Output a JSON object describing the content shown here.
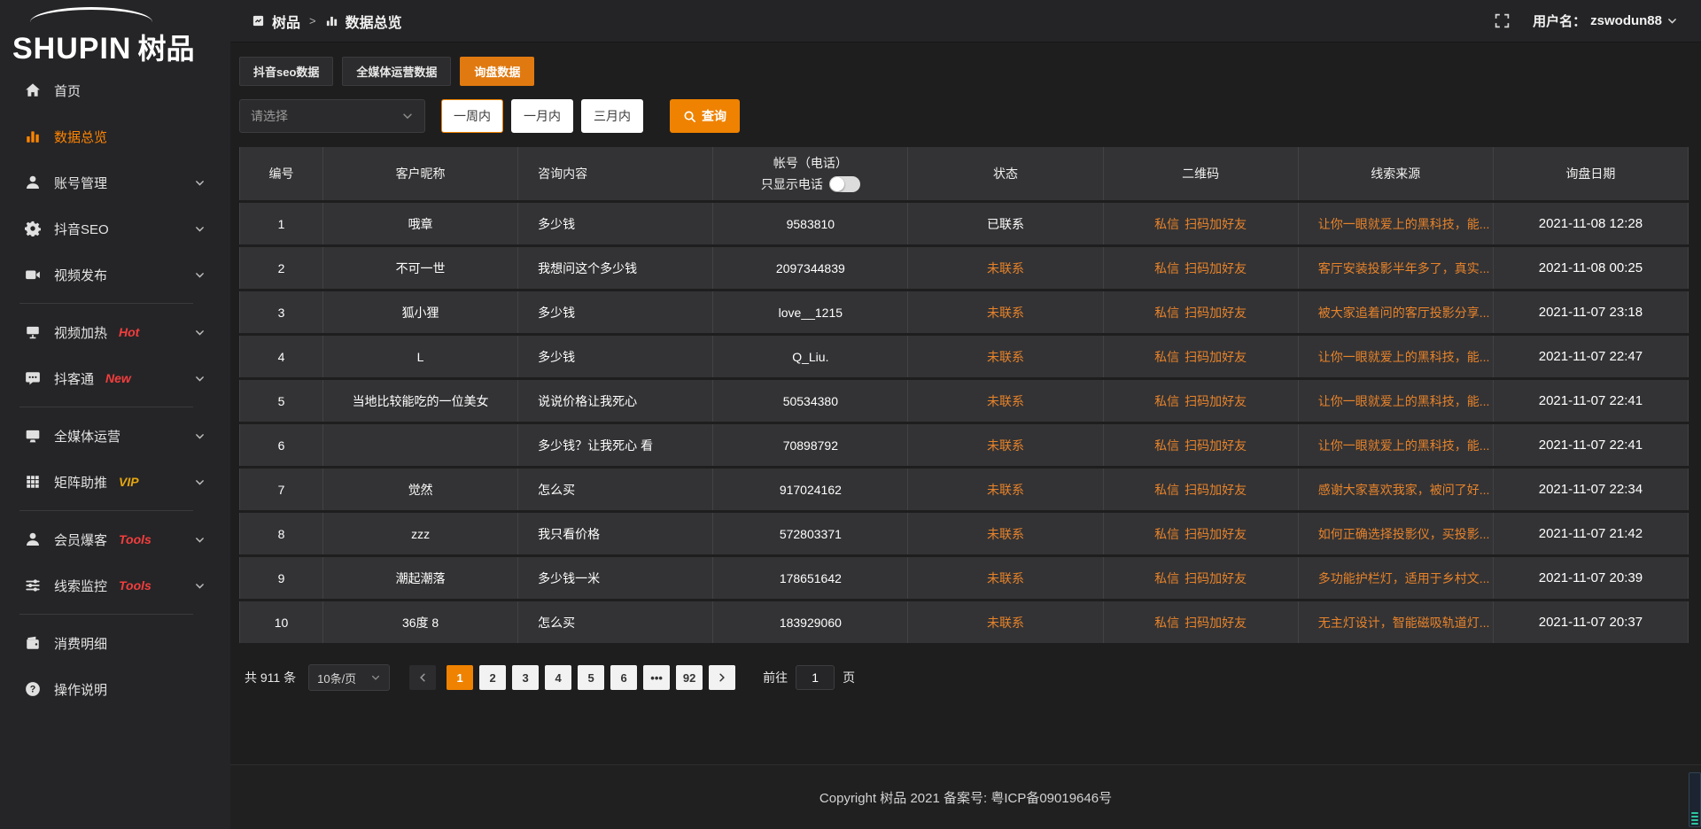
{
  "colors": {
    "accent": "#ef8200",
    "tab_active": "#e0790f",
    "link_orange": "#e8832a",
    "badge_red": "#f43d3d",
    "badge_gold": "#e5a60f",
    "widget_teal": "#2ec7a0"
  },
  "logo": {
    "brand_en": "SHUPIN",
    "brand_cn": "树品"
  },
  "header": {
    "breadcrumb": {
      "root": "树品",
      "separator": ">",
      "current": "数据总览"
    },
    "username_label": "用户名：",
    "username": "zswodun88"
  },
  "sidebar": {
    "items": [
      {
        "label": "首页",
        "icon": "home"
      },
      {
        "label": "数据总览",
        "icon": "chart",
        "active": true
      },
      {
        "label": "账号管理",
        "icon": "user",
        "chevron": "chevron-down"
      },
      {
        "label": "抖音SEO",
        "icon": "gear",
        "chevron": "chevron-down"
      },
      {
        "label": "视频发布",
        "icon": "video",
        "chevron": "chevron-down"
      },
      {
        "divider": true
      },
      {
        "label": "视频加热",
        "icon": "billboard",
        "badge": "Hot",
        "badge_class": "red",
        "chevron": "chevron-down"
      },
      {
        "label": "抖客通",
        "icon": "chat",
        "badge": "New",
        "badge_class": "red",
        "chevron": "chevron-down"
      },
      {
        "divider": true
      },
      {
        "label": "全媒体运营",
        "icon": "monitor",
        "chevron": "chevron-down"
      },
      {
        "label": "矩阵助推",
        "icon": "grid",
        "badge": "VIP",
        "badge_class": "gold",
        "chevron": "chevron-down"
      },
      {
        "divider": true
      },
      {
        "label": "会员爆客",
        "icon": "user",
        "badge": "Tools",
        "badge_class": "red",
        "chevron": "chevron-down"
      },
      {
        "label": "线索监控",
        "icon": "sliders",
        "badge": "Tools",
        "badge_class": "red",
        "chevron": "chevron-down"
      },
      {
        "divider": true
      },
      {
        "label": "消费明细",
        "icon": "wallet"
      },
      {
        "label": "操作说明",
        "icon": "help"
      }
    ]
  },
  "tabs": [
    {
      "label": "抖音seo数据"
    },
    {
      "label": "全媒体运营数据"
    },
    {
      "label": "询盘数据",
      "active": true
    }
  ],
  "filters": {
    "select_placeholder": "请选择",
    "ranges": [
      {
        "label": "一周内",
        "active": true
      },
      {
        "label": "一月内"
      },
      {
        "label": "三月内"
      }
    ],
    "search_label": "查询"
  },
  "table": {
    "headers": [
      "编号",
      "客户昵称",
      "咨询内容",
      "帐号（电话）",
      "状态",
      "二维码",
      "线索来源",
      "询盘日期"
    ],
    "phone_toggle_label": "只显示电话",
    "rows": [
      {
        "no": "1",
        "nickname": "哦章",
        "content": "多少钱",
        "account": "9583810",
        "status": "已联系",
        "status_class": "contacted",
        "qr_msg": "私信",
        "qr_scan": "扫码加好友",
        "source": "让你一眼就爱上的黑科技，能...",
        "date": "2021-11-08 12:28"
      },
      {
        "no": "2",
        "nickname": "不可一世",
        "content": "我想问这个多少钱",
        "account": "2097344839",
        "status": "未联系",
        "status_class": "uncontacted",
        "qr_msg": "私信",
        "qr_scan": "扫码加好友",
        "source": "客厅安装投影半年多了，真实...",
        "date": "2021-11-08 00:25"
      },
      {
        "no": "3",
        "nickname": "狐小狸",
        "content": "多少钱",
        "account": "love__1215",
        "status": "未联系",
        "status_class": "uncontacted",
        "qr_msg": "私信",
        "qr_scan": "扫码加好友",
        "source": "被大家追着问的客厅投影分享...",
        "date": "2021-11-07 23:18"
      },
      {
        "no": "4",
        "nickname": "L",
        "content": "多少钱",
        "account": "Q_Liu.",
        "status": "未联系",
        "status_class": "uncontacted",
        "qr_msg": "私信",
        "qr_scan": "扫码加好友",
        "source": "让你一眼就爱上的黑科技，能...",
        "date": "2021-11-07 22:47"
      },
      {
        "no": "5",
        "nickname": "当地比较能吃的一位美女",
        "content": "说说价格让我死心",
        "account": "50534380",
        "status": "未联系",
        "status_class": "uncontacted",
        "qr_msg": "私信",
        "qr_scan": "扫码加好友",
        "source": "让你一眼就爱上的黑科技，能...",
        "date": "2021-11-07 22:41"
      },
      {
        "no": "6",
        "nickname": "",
        "content": "多少钱？让我死心 看",
        "account": "70898792",
        "status": "未联系",
        "status_class": "uncontacted",
        "qr_msg": "私信",
        "qr_scan": "扫码加好友",
        "source": "让你一眼就爱上的黑科技，能...",
        "date": "2021-11-07 22:41"
      },
      {
        "no": "7",
        "nickname": "觉然",
        "content": "怎么买",
        "account": "917024162",
        "status": "未联系",
        "status_class": "uncontacted",
        "qr_msg": "私信",
        "qr_scan": "扫码加好友",
        "source": "感谢大家喜欢我家，被问了好...",
        "date": "2021-11-07 22:34"
      },
      {
        "no": "8",
        "nickname": "zzz",
        "content": "我只看价格",
        "account": "572803371",
        "status": "未联系",
        "status_class": "uncontacted",
        "qr_msg": "私信",
        "qr_scan": "扫码加好友",
        "source": "如何正确选择投影仪，买投影...",
        "date": "2021-11-07 21:42"
      },
      {
        "no": "9",
        "nickname": "潮起潮落",
        "content": "多少钱一米",
        "account": "178651642",
        "status": "未联系",
        "status_class": "uncontacted",
        "qr_msg": "私信",
        "qr_scan": "扫码加好友",
        "source": "多功能护栏灯，适用于乡村文...",
        "date": "2021-11-07 20:39"
      },
      {
        "no": "10",
        "nickname": "36度 8",
        "content": "怎么买",
        "account": "183929060",
        "status": "未联系",
        "status_class": "uncontacted",
        "qr_msg": "私信",
        "qr_scan": "扫码加好友",
        "source": "无主灯设计，智能磁吸轨道灯...",
        "date": "2021-11-07 20:37"
      }
    ]
  },
  "pagination": {
    "total": "共 911 条",
    "page_size": "10条/页",
    "pages": [
      {
        "label": "1",
        "active": true
      },
      {
        "label": "2"
      },
      {
        "label": "3"
      },
      {
        "label": "4"
      },
      {
        "label": "5"
      },
      {
        "label": "6"
      },
      {
        "label": "•••",
        "ellipsis": true
      },
      {
        "label": "92"
      }
    ],
    "goto_label": "前往",
    "goto_value": "1",
    "goto_unit": "页"
  },
  "footer": {
    "copyright": "Copyright 树品 2021 备案号: 粤ICP备09019646号"
  }
}
